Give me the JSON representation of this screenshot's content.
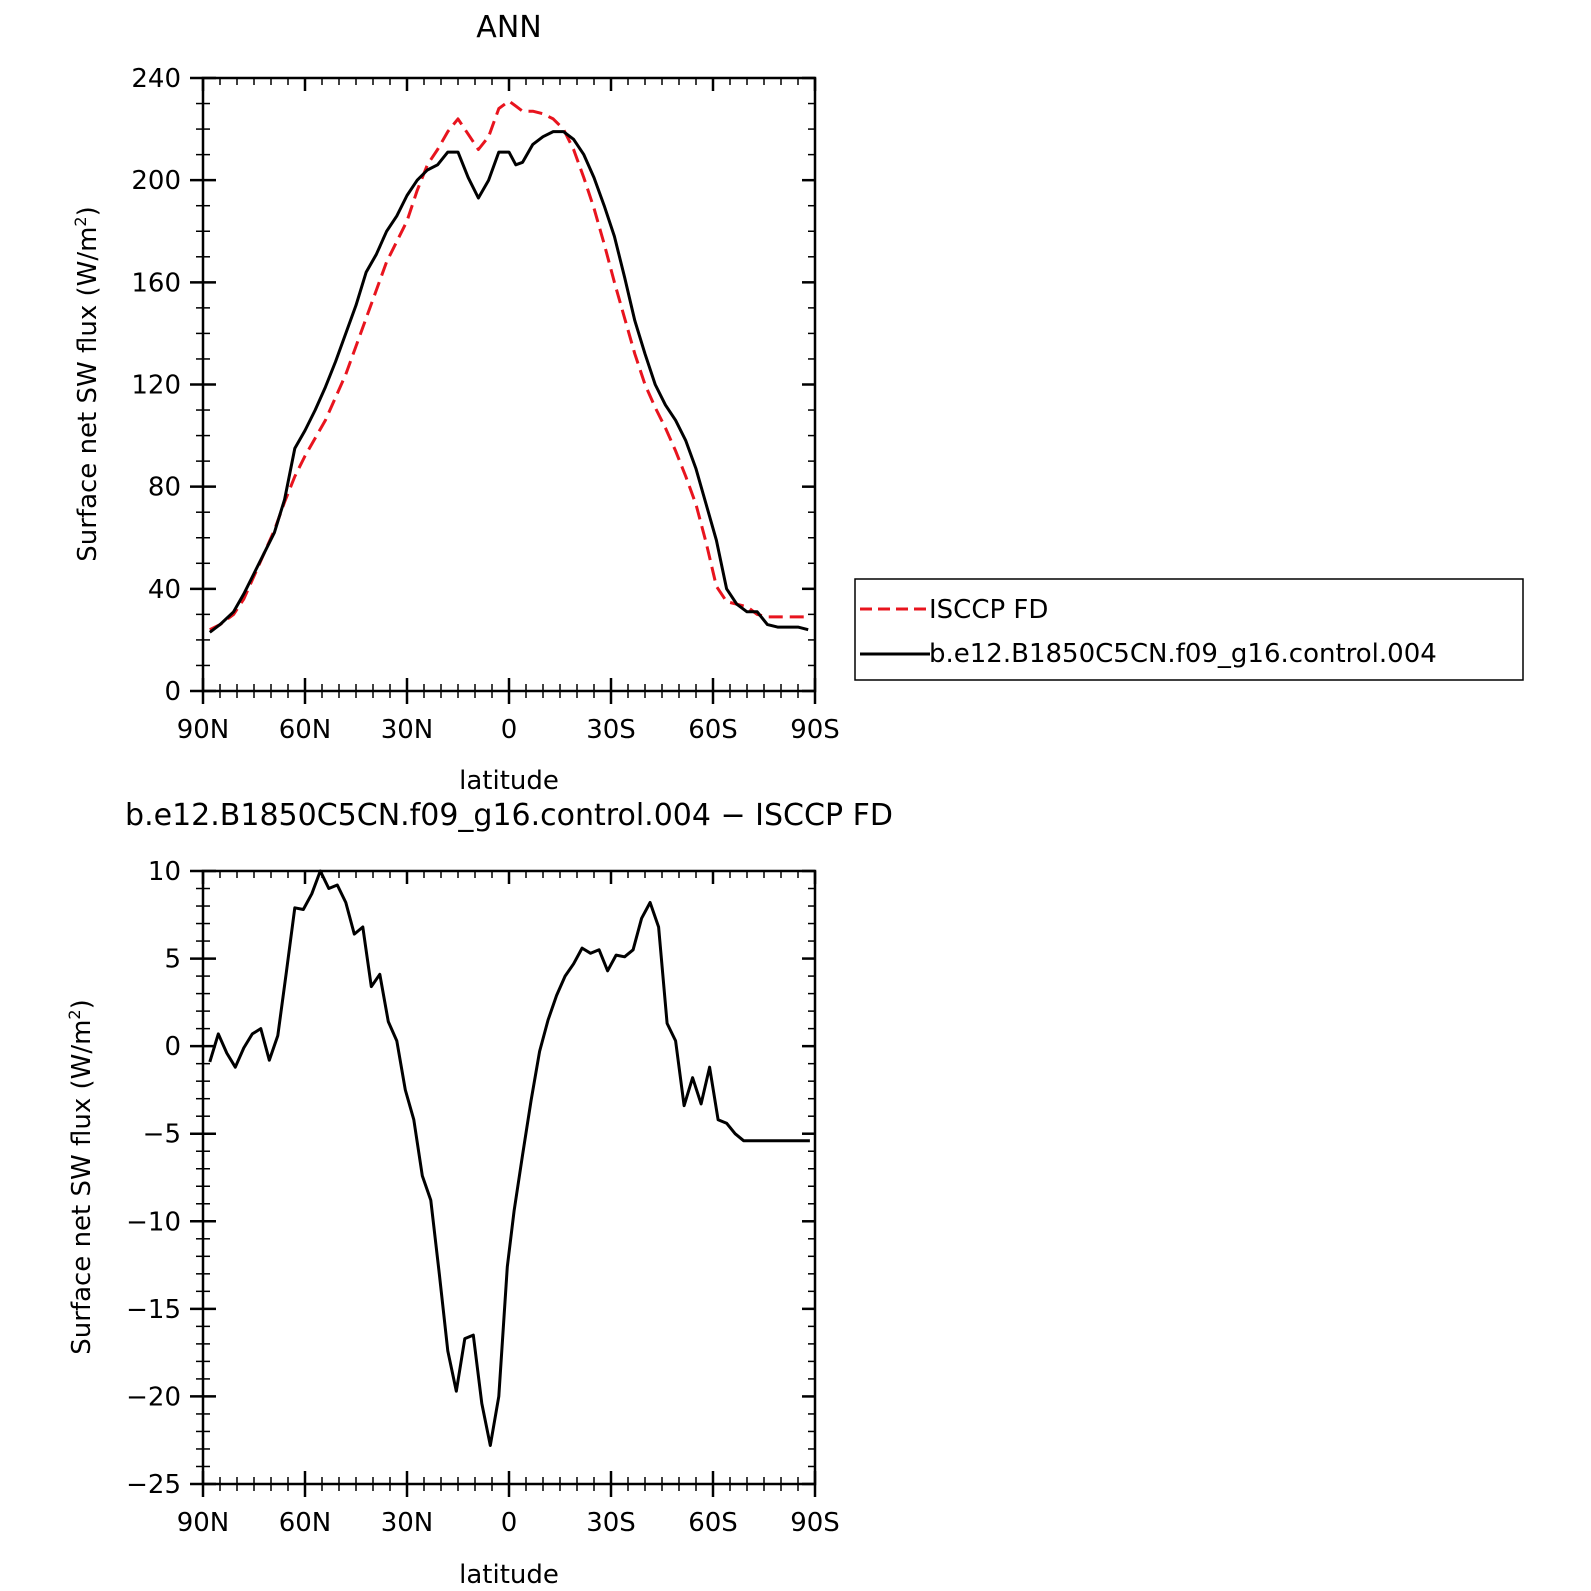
{
  "chart_data": [
    {
      "type": "line",
      "title": "ANN",
      "xlabel": "latitude",
      "ylabel": "Surface net SW flux (W/m²)",
      "ylabel_main": "Surface net SW flux (W/m",
      "ylabel_sup": "2",
      "ylabel_end": ")",
      "xlim": [
        90,
        -90
      ],
      "ylim": [
        0,
        240
      ],
      "x_ticks": [
        90,
        60,
        30,
        0,
        -30,
        -60,
        -90
      ],
      "x_tick_labels": [
        "90N",
        "60N",
        "30N",
        "0",
        "30S",
        "60S",
        "90S"
      ],
      "y_ticks": [
        0,
        40,
        80,
        120,
        160,
        200,
        240
      ],
      "y_tick_labels": [
        "0",
        "40",
        "80",
        "120",
        "160",
        "200",
        "240"
      ],
      "x_minor_step": 5,
      "y_minor_step": 10,
      "grid": false,
      "legend_position": "right, outside",
      "series": [
        {
          "name": "ISCCP FD",
          "color": "#e8141e",
          "style": "dashed",
          "x": [
            88,
            85,
            81,
            78,
            75,
            72,
            69,
            66,
            63,
            60,
            57,
            54,
            51,
            48,
            45,
            42,
            39,
            36,
            33,
            30,
            27,
            24,
            21,
            18,
            15,
            12,
            9,
            6,
            3,
            0,
            -2,
            -4,
            -7,
            -10,
            -13,
            -16,
            -19,
            -22,
            -25,
            -28,
            -31,
            -34,
            -37,
            -40,
            -43,
            -46,
            -49,
            -52,
            -55,
            -58,
            -61,
            -64,
            -67,
            -70,
            -73,
            -76,
            -79,
            -82,
            -85,
            -88
          ],
          "y": [
            24,
            26,
            30,
            36,
            45,
            54,
            63,
            74,
            84,
            92,
            99,
            106,
            115,
            124,
            135,
            146,
            157,
            168,
            176,
            184,
            196,
            206,
            212,
            219,
            224,
            218,
            212,
            217,
            228,
            231,
            229,
            227,
            227,
            226,
            224,
            220,
            212,
            201,
            189,
            175,
            160,
            146,
            132,
            120,
            111,
            103,
            94,
            84,
            73,
            58,
            41,
            35,
            34,
            33,
            30,
            29,
            29,
            29,
            29,
            29
          ]
        },
        {
          "name": "b.e12.B1850C5CN.f09_g16.control.004",
          "color": "#000000",
          "style": "solid",
          "x": [
            88,
            85,
            81,
            78,
            75,
            72,
            69,
            66,
            63,
            60,
            57,
            54,
            51,
            48,
            45,
            42,
            39,
            36,
            33,
            30,
            27,
            24,
            21,
            18,
            15,
            12,
            9,
            6,
            3,
            0,
            -2,
            -4,
            -7,
            -10,
            -13,
            -16,
            -19,
            -22,
            -25,
            -28,
            -31,
            -34,
            -37,
            -40,
            -43,
            -46,
            -49,
            -52,
            -55,
            -58,
            -61,
            -64,
            -67,
            -70,
            -73,
            -76,
            -79,
            -82,
            -85,
            -88
          ],
          "y": [
            23,
            26,
            31,
            38,
            46,
            54,
            62,
            75,
            95,
            102,
            110,
            119,
            129,
            140,
            151,
            164,
            171,
            180,
            186,
            194,
            200,
            204,
            206,
            211,
            211,
            201,
            193,
            200,
            211,
            211,
            206,
            207,
            214,
            217,
            219,
            219,
            216,
            210,
            201,
            190,
            178,
            162,
            145,
            132,
            120,
            112,
            106,
            98,
            87,
            73,
            59,
            40,
            34,
            31,
            31,
            26,
            25,
            25,
            25,
            24
          ]
        }
      ]
    },
    {
      "type": "line",
      "title": "b.e12.B1850C5CN.f09_g16.control.004 − ISCCP FD",
      "xlabel": "latitude",
      "ylabel": "Surface net SW flux (W/m²)",
      "ylabel_main": "Surface net SW flux (W/m",
      "ylabel_sup": "2",
      "ylabel_end": ")",
      "xlim": [
        90,
        -90
      ],
      "ylim": [
        -25,
        10
      ],
      "x_ticks": [
        90,
        60,
        30,
        0,
        -30,
        -60,
        -90
      ],
      "x_tick_labels": [
        "90N",
        "60N",
        "30N",
        "0",
        "30S",
        "60S",
        "90S"
      ],
      "y_ticks": [
        -25,
        -20,
        -15,
        -10,
        -5,
        0,
        5,
        10
      ],
      "y_tick_labels": [
        "−25",
        "−20",
        "−15",
        "−10",
        "−5",
        "0",
        "5",
        "10"
      ],
      "x_minor_step": 5,
      "y_minor_step": 1,
      "grid": false,
      "series": [
        {
          "color": "#000000",
          "style": "solid",
          "x": [
            88,
            85.5,
            83,
            80.5,
            78,
            75.5,
            73,
            70.5,
            68,
            65.5,
            63,
            60.5,
            58,
            55.5,
            53,
            50.5,
            48,
            45.5,
            43,
            40.5,
            38,
            35.5,
            33,
            30.5,
            28,
            25.5,
            23,
            20.5,
            18,
            15.5,
            13,
            10.5,
            8,
            5.5,
            3,
            0.5,
            -1.5,
            -4,
            -6.5,
            -9,
            -11.5,
            -14,
            -16.5,
            -19,
            -21.5,
            -24,
            -26.5,
            -29,
            -31.5,
            -34,
            -36.5,
            -39,
            -41.5,
            -44,
            -46.5,
            -49,
            -51.5,
            -54,
            -56.5,
            -59,
            -61.5,
            -64,
            -66.5,
            -69,
            -71.5,
            -74,
            -76.5,
            -79,
            -81.5,
            -84,
            -86.5,
            -88.5
          ],
          "y": [
            -0.9,
            0.7,
            -0.4,
            -1.2,
            -0.1,
            0.7,
            1.0,
            -0.8,
            0.6,
            4.2,
            7.9,
            7.8,
            8.7,
            10.0,
            9.0,
            9.2,
            8.2,
            6.4,
            6.8,
            3.4,
            4.1,
            1.4,
            0.3,
            -2.5,
            -4.2,
            -7.4,
            -8.8,
            -13.0,
            -17.4,
            -19.7,
            -16.7,
            -16.5,
            -20.4,
            -22.8,
            -20.0,
            -12.6,
            -9.4,
            -6.2,
            -3.1,
            -0.3,
            1.5,
            2.9,
            4.0,
            4.7,
            5.6,
            5.3,
            5.5,
            4.3,
            5.2,
            5.1,
            5.5,
            7.3,
            8.2,
            6.8,
            1.3,
            0.3,
            -3.4,
            -1.8,
            -3.3,
            -1.2,
            -4.2,
            -4.4,
            -5.0,
            -5.4,
            -5.4,
            -5.4,
            -5.4,
            -5.4,
            -5.4,
            -5.4,
            -5.4,
            -5.4
          ]
        }
      ]
    }
  ]
}
